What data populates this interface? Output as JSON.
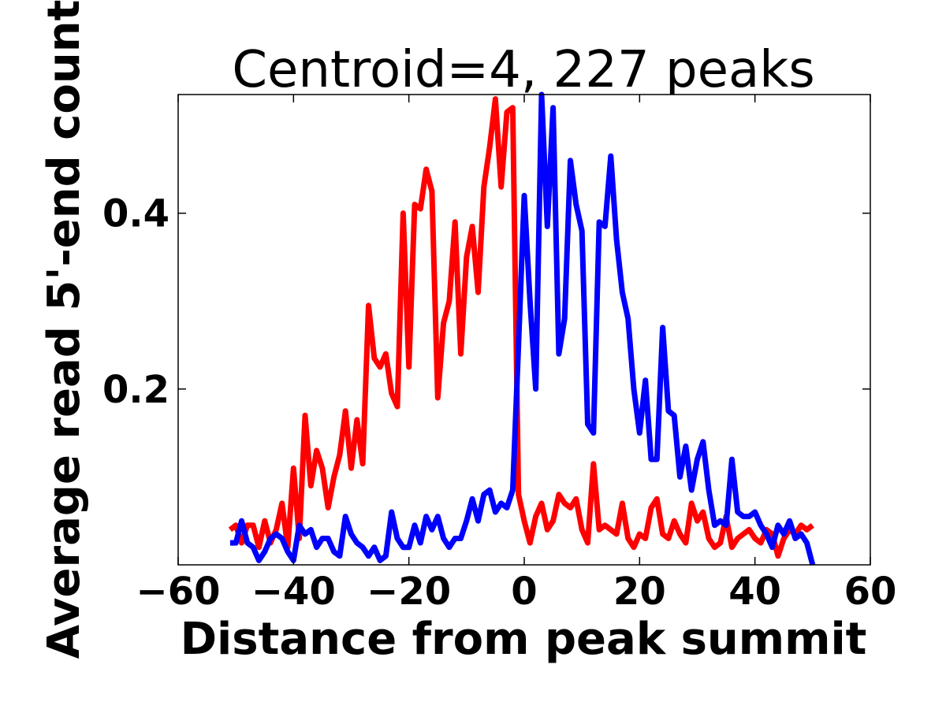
{
  "chart_data": {
    "type": "line",
    "title": "Centroid=4, 227 peaks",
    "xlabel": "Distance from peak summit",
    "ylabel": "Average read 5'-end count",
    "xlim": [
      -60,
      60
    ],
    "ylim": [
      0.0,
      0.535
    ],
    "xticks": [
      "−60",
      "−40",
      "−20",
      "0",
      "20",
      "40",
      "60"
    ],
    "xtick_values": [
      -60,
      -40,
      -20,
      0,
      20,
      40,
      60
    ],
    "yticks": [
      "0.2",
      "0.4"
    ],
    "ytick_values": [
      0.2,
      0.4
    ],
    "grid": false,
    "series": [
      {
        "color": "#ff0000",
        "x": [
          -51,
          -50,
          -49,
          -48,
          -47,
          -46,
          -45,
          -44,
          -43,
          -42,
          -41,
          -40,
          -39,
          -38,
          -37,
          -36,
          -35,
          -34,
          -33,
          -32,
          -31,
          -30,
          -29,
          -28,
          -27,
          -26,
          -25,
          -24,
          -23,
          -22,
          -21,
          -20,
          -19,
          -18,
          -17,
          -16,
          -15,
          -14,
          -13,
          -12,
          -11,
          -10,
          -9,
          -8,
          -7,
          -6,
          -5,
          -4,
          -3,
          -2,
          -1,
          0,
          1,
          2,
          3,
          4,
          5,
          6,
          7,
          8,
          9,
          10,
          11,
          12,
          13,
          14,
          15,
          16,
          17,
          18,
          19,
          20,
          21,
          22,
          23,
          24,
          25,
          26,
          27,
          28,
          29,
          30,
          31,
          32,
          33,
          34,
          35,
          36,
          37,
          38,
          39,
          40,
          41,
          42,
          43,
          44,
          45,
          46,
          47,
          48,
          49,
          50
        ],
        "y": [
          0.04,
          0.045,
          0.025,
          0.045,
          0.045,
          0.02,
          0.05,
          0.025,
          0.04,
          0.07,
          0.02,
          0.11,
          0.03,
          0.17,
          0.09,
          0.13,
          0.11,
          0.065,
          0.1,
          0.125,
          0.175,
          0.11,
          0.165,
          0.115,
          0.295,
          0.235,
          0.225,
          0.24,
          0.195,
          0.18,
          0.4,
          0.225,
          0.41,
          0.405,
          0.45,
          0.425,
          0.19,
          0.275,
          0.3,
          0.39,
          0.24,
          0.35,
          0.385,
          0.31,
          0.43,
          0.475,
          0.53,
          0.43,
          0.515,
          0.52,
          0.08,
          0.05,
          0.025,
          0.055,
          0.07,
          0.04,
          0.05,
          0.08,
          0.07,
          0.065,
          0.075,
          0.04,
          0.025,
          0.115,
          0.04,
          0.045,
          0.04,
          0.035,
          0.07,
          0.03,
          0.02,
          0.035,
          0.03,
          0.065,
          0.075,
          0.035,
          0.03,
          0.05,
          0.035,
          0.025,
          0.07,
          0.05,
          0.06,
          0.03,
          0.02,
          0.025,
          0.055,
          0.02,
          0.03,
          0.035,
          0.04,
          0.03,
          0.025,
          0.04,
          0.035,
          0.01,
          0.03,
          0.04,
          0.035,
          0.045,
          0.04,
          0.045
        ]
      },
      {
        "color": "#0000ff",
        "x": [
          -51,
          -50,
          -49,
          -48,
          -47,
          -46,
          -45,
          -44,
          -43,
          -42,
          -41,
          -40,
          -39,
          -38,
          -37,
          -36,
          -35,
          -34,
          -33,
          -32,
          -31,
          -30,
          -29,
          -28,
          -27,
          -26,
          -25,
          -24,
          -23,
          -22,
          -21,
          -20,
          -19,
          -18,
          -17,
          -16,
          -15,
          -14,
          -13,
          -12,
          -11,
          -10,
          -9,
          -8,
          -7,
          -6,
          -5,
          -4,
          -3,
          -2,
          -1,
          0,
          1,
          2,
          3,
          4,
          5,
          6,
          7,
          8,
          9,
          10,
          11,
          12,
          13,
          14,
          15,
          16,
          17,
          18,
          19,
          20,
          21,
          22,
          23,
          24,
          25,
          26,
          27,
          28,
          29,
          30,
          31,
          32,
          33,
          34,
          35,
          36,
          37,
          38,
          39,
          40,
          41,
          42,
          43,
          44,
          45,
          46,
          47,
          48,
          49,
          50
        ],
        "y": [
          0.025,
          0.025,
          0.05,
          0.025,
          0.02,
          0.005,
          0.015,
          0.03,
          0.035,
          0.03,
          0.015,
          0.005,
          0.045,
          0.035,
          0.04,
          0.02,
          0.03,
          0.03,
          0.015,
          0.01,
          0.055,
          0.035,
          0.025,
          0.02,
          0.01,
          0.02,
          0.005,
          0.01,
          0.06,
          0.03,
          0.02,
          0.02,
          0.045,
          0.025,
          0.055,
          0.04,
          0.055,
          0.03,
          0.02,
          0.03,
          0.03,
          0.05,
          0.075,
          0.05,
          0.08,
          0.085,
          0.06,
          0.07,
          0.065,
          0.085,
          0.25,
          0.42,
          0.3,
          0.2,
          0.535,
          0.385,
          0.52,
          0.24,
          0.28,
          0.46,
          0.41,
          0.38,
          0.16,
          0.15,
          0.39,
          0.385,
          0.465,
          0.37,
          0.31,
          0.28,
          0.2,
          0.15,
          0.21,
          0.12,
          0.12,
          0.27,
          0.175,
          0.17,
          0.1,
          0.135,
          0.085,
          0.12,
          0.14,
          0.085,
          0.045,
          0.05,
          0.045,
          0.12,
          0.06,
          0.055,
          0.055,
          0.06,
          0.045,
          0.035,
          0.02,
          0.045,
          0.035,
          0.05,
          0.03,
          0.035,
          0.025,
          0.0
        ]
      }
    ]
  }
}
